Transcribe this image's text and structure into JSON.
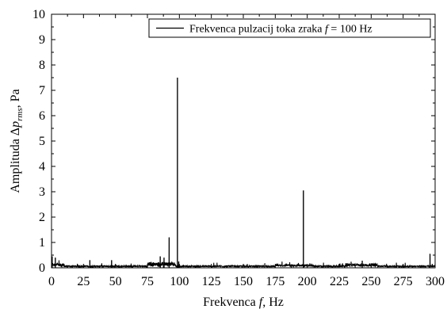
{
  "chart_data": {
    "type": "line",
    "xlabel": {
      "prefix": "Frekvenca ",
      "var": "f",
      "unit": ",   Hz"
    },
    "ylabel": {
      "prefix": "Amplituda Δ",
      "var": "p",
      "sub": "rms",
      "unit": ",   Pa"
    },
    "xlim": [
      0,
      300
    ],
    "ylim": [
      0,
      10
    ],
    "xticks": [
      "0",
      "25",
      "50",
      "75",
      "100",
      "125",
      "150",
      "175",
      "200",
      "225",
      "250",
      "275",
      "300"
    ],
    "yticks": [
      "0",
      "1",
      "2",
      "3",
      "4",
      "5",
      "6",
      "7",
      "8",
      "9",
      "10"
    ],
    "legend": {
      "position": "top-right",
      "prefix": "Frekvenca pulzacij toka zraka ",
      "var": "f",
      "suffix": " = 100 Hz"
    },
    "grid": false,
    "series": [
      {
        "color": "#000000",
        "peaks": [
          {
            "x": 0.5,
            "y": 0.45
          },
          {
            "x": 3,
            "y": 0.4
          },
          {
            "x": 30,
            "y": 0.3
          },
          {
            "x": 47,
            "y": 0.3
          },
          {
            "x": 85,
            "y": 0.45
          },
          {
            "x": 88,
            "y": 0.4
          },
          {
            "x": 92,
            "y": 1.2
          },
          {
            "x": 98.5,
            "y": 7.5
          },
          {
            "x": 99.5,
            "y": 0.25
          },
          {
            "x": 197,
            "y": 3.05
          },
          {
            "x": 243,
            "y": 0.28
          },
          {
            "x": 296,
            "y": 0.55
          }
        ]
      }
    ]
  }
}
